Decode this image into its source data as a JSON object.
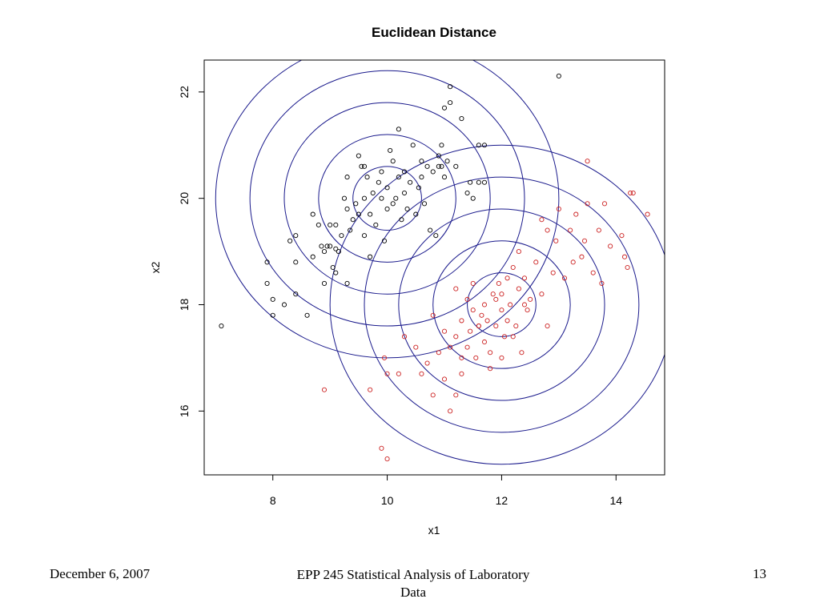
{
  "footer": {
    "date": "December 6, 2007",
    "course": "EPP 245 Statistical Analysis of Laboratory Data",
    "page": "13"
  },
  "colors": {
    "cluster1": "#000000",
    "cluster2": "#cc2222",
    "circles": "#1a1a8c",
    "frame": "#000000"
  },
  "chart_data": {
    "type": "scatter",
    "title": "Euclidean Distance",
    "xlabel": "x1",
    "ylabel": "x2",
    "xlim": [
      6.8,
      14.85
    ],
    "ylim": [
      14.8,
      22.6
    ],
    "xticks": [
      8,
      10,
      12,
      14
    ],
    "yticks": [
      16,
      18,
      20,
      22
    ],
    "grid": false,
    "contours": [
      {
        "center": [
          10,
          20
        ],
        "radii": [
          0.6,
          1.2,
          1.8,
          2.4,
          3.0
        ]
      },
      {
        "center": [
          12,
          18
        ],
        "radii": [
          0.6,
          1.2,
          1.8,
          2.4,
          3.0
        ]
      }
    ],
    "series": [
      {
        "color": "black",
        "points": [
          [
            7.1,
            17.6
          ],
          [
            7.9,
            18.8
          ],
          [
            7.9,
            18.4
          ],
          [
            8.0,
            18.1
          ],
          [
            8.0,
            17.8
          ],
          [
            8.2,
            18.0
          ],
          [
            8.3,
            19.2
          ],
          [
            8.4,
            19.3
          ],
          [
            8.4,
            18.8
          ],
          [
            8.4,
            18.2
          ],
          [
            8.6,
            17.8
          ],
          [
            8.7,
            19.7
          ],
          [
            8.7,
            18.9
          ],
          [
            8.8,
            19.5
          ],
          [
            8.85,
            19.1
          ],
          [
            8.9,
            18.4
          ],
          [
            8.9,
            19.0
          ],
          [
            9.0,
            19.5
          ],
          [
            9.0,
            19.1
          ],
          [
            9.05,
            18.7
          ],
          [
            9.1,
            19.05
          ],
          [
            9.1,
            18.6
          ],
          [
            9.15,
            19.0
          ],
          [
            9.2,
            19.3
          ],
          [
            9.25,
            20.0
          ],
          [
            9.3,
            20.4
          ],
          [
            9.3,
            19.8
          ],
          [
            9.35,
            19.4
          ],
          [
            9.4,
            19.6
          ],
          [
            9.45,
            19.9
          ],
          [
            9.5,
            19.7
          ],
          [
            9.5,
            20.8
          ],
          [
            9.55,
            20.6
          ],
          [
            9.6,
            19.3
          ],
          [
            9.6,
            20.0
          ],
          [
            9.65,
            20.4
          ],
          [
            9.7,
            19.7
          ],
          [
            9.7,
            18.9
          ],
          [
            9.75,
            20.1
          ],
          [
            9.8,
            19.5
          ],
          [
            9.85,
            20.3
          ],
          [
            9.9,
            20.0
          ],
          [
            9.9,
            20.5
          ],
          [
            9.95,
            19.2
          ],
          [
            10.0,
            19.8
          ],
          [
            10.0,
            20.2
          ],
          [
            10.05,
            20.9
          ],
          [
            10.1,
            20.7
          ],
          [
            10.1,
            19.9
          ],
          [
            10.15,
            20.0
          ],
          [
            10.2,
            20.4
          ],
          [
            10.2,
            21.3
          ],
          [
            10.25,
            19.6
          ],
          [
            10.3,
            20.1
          ],
          [
            10.3,
            20.5
          ],
          [
            10.35,
            19.8
          ],
          [
            10.4,
            20.3
          ],
          [
            10.45,
            21.0
          ],
          [
            10.5,
            19.7
          ],
          [
            10.55,
            20.2
          ],
          [
            10.6,
            20.4
          ],
          [
            10.65,
            19.9
          ],
          [
            10.7,
            20.6
          ],
          [
            10.75,
            19.4
          ],
          [
            10.8,
            20.5
          ],
          [
            10.85,
            19.3
          ],
          [
            10.9,
            20.8
          ],
          [
            10.95,
            20.6
          ],
          [
            11.0,
            21.7
          ],
          [
            11.0,
            20.4
          ],
          [
            11.05,
            20.7
          ],
          [
            11.1,
            21.8
          ],
          [
            11.1,
            22.1
          ],
          [
            11.2,
            20.6
          ],
          [
            11.3,
            21.5
          ],
          [
            11.4,
            20.1
          ],
          [
            11.45,
            20.3
          ],
          [
            11.5,
            20.0
          ],
          [
            11.6,
            21.0
          ],
          [
            11.6,
            20.3
          ],
          [
            11.7,
            20.3
          ],
          [
            11.7,
            21.0
          ],
          [
            13.0,
            22.3
          ],
          [
            10.95,
            21.0
          ],
          [
            10.9,
            20.6
          ],
          [
            10.6,
            20.7
          ],
          [
            9.6,
            20.6
          ],
          [
            9.3,
            18.4
          ],
          [
            8.95,
            19.1
          ],
          [
            9.1,
            19.5
          ]
        ]
      },
      {
        "color": "red",
        "points": [
          [
            8.9,
            16.4
          ],
          [
            9.7,
            16.4
          ],
          [
            9.9,
            15.3
          ],
          [
            10.0,
            15.1
          ],
          [
            9.95,
            17.0
          ],
          [
            10.0,
            16.7
          ],
          [
            10.2,
            16.7
          ],
          [
            10.3,
            17.4
          ],
          [
            10.5,
            17.2
          ],
          [
            10.6,
            16.7
          ],
          [
            10.7,
            16.9
          ],
          [
            10.8,
            16.3
          ],
          [
            10.8,
            17.8
          ],
          [
            10.9,
            17.1
          ],
          [
            11.0,
            17.5
          ],
          [
            11.0,
            16.6
          ],
          [
            11.1,
            17.2
          ],
          [
            11.1,
            16.0
          ],
          [
            11.2,
            16.3
          ],
          [
            11.2,
            17.4
          ],
          [
            11.2,
            18.3
          ],
          [
            11.3,
            16.7
          ],
          [
            11.3,
            17.0
          ],
          [
            11.3,
            17.7
          ],
          [
            11.4,
            17.2
          ],
          [
            11.4,
            18.1
          ],
          [
            11.45,
            17.5
          ],
          [
            11.5,
            17.9
          ],
          [
            11.5,
            18.4
          ],
          [
            11.55,
            17.0
          ],
          [
            11.6,
            17.6
          ],
          [
            11.65,
            17.8
          ],
          [
            11.7,
            18.0
          ],
          [
            11.7,
            17.3
          ],
          [
            11.75,
            17.7
          ],
          [
            11.8,
            17.1
          ],
          [
            11.85,
            18.2
          ],
          [
            11.9,
            17.6
          ],
          [
            11.95,
            18.4
          ],
          [
            12.0,
            17.9
          ],
          [
            12.0,
            18.2
          ],
          [
            12.05,
            17.4
          ],
          [
            12.1,
            18.5
          ],
          [
            12.1,
            17.7
          ],
          [
            12.15,
            18.0
          ],
          [
            12.2,
            18.7
          ],
          [
            12.25,
            17.6
          ],
          [
            12.3,
            19.0
          ],
          [
            12.3,
            18.3
          ],
          [
            12.35,
            17.1
          ],
          [
            12.4,
            18.5
          ],
          [
            12.45,
            17.9
          ],
          [
            12.5,
            18.1
          ],
          [
            12.6,
            18.8
          ],
          [
            12.7,
            18.2
          ],
          [
            12.7,
            19.6
          ],
          [
            12.8,
            17.6
          ],
          [
            12.8,
            19.4
          ],
          [
            12.9,
            18.6
          ],
          [
            12.95,
            19.2
          ],
          [
            13.0,
            19.8
          ],
          [
            13.1,
            18.5
          ],
          [
            13.2,
            19.4
          ],
          [
            13.25,
            18.8
          ],
          [
            13.3,
            19.7
          ],
          [
            13.4,
            18.9
          ],
          [
            13.45,
            19.2
          ],
          [
            13.5,
            19.9
          ],
          [
            13.5,
            20.7
          ],
          [
            13.6,
            18.6
          ],
          [
            13.7,
            19.4
          ],
          [
            13.75,
            18.4
          ],
          [
            13.8,
            19.9
          ],
          [
            13.9,
            19.1
          ],
          [
            14.1,
            19.3
          ],
          [
            14.15,
            18.9
          ],
          [
            14.2,
            18.7
          ],
          [
            14.25,
            20.1
          ],
          [
            14.3,
            20.1
          ],
          [
            14.55,
            19.7
          ],
          [
            12.4,
            18.0
          ],
          [
            11.9,
            18.1
          ],
          [
            11.6,
            17.6
          ],
          [
            12.2,
            17.4
          ],
          [
            11.8,
            16.8
          ],
          [
            12.0,
            17.0
          ]
        ]
      }
    ]
  }
}
